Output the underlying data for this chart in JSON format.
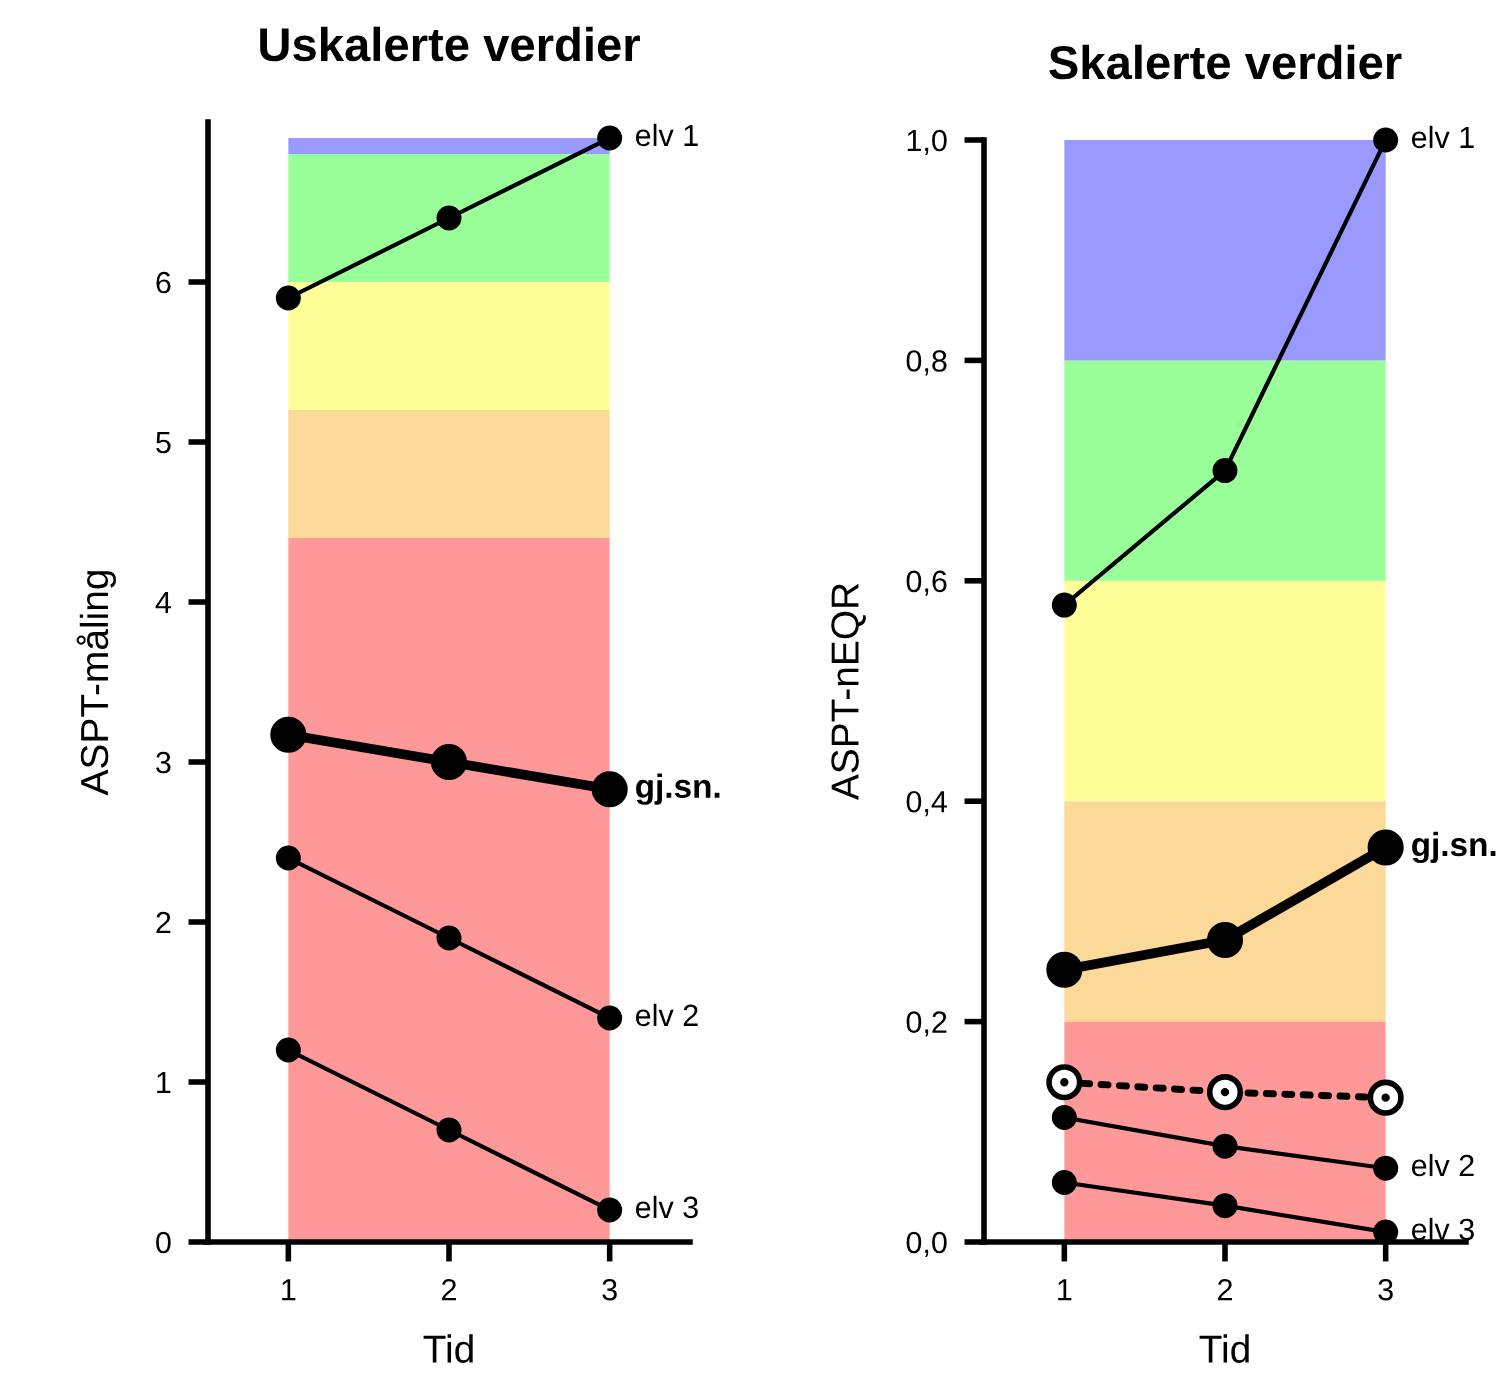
{
  "chart_data": [
    {
      "type": "line",
      "title": "Uskalerte verdier",
      "xlabel": "Tid",
      "ylabel": "ASPT-måling",
      "x": [
        1,
        2,
        3
      ],
      "xlim": [
        0.5,
        3.5
      ],
      "xticks": [
        1,
        2,
        3
      ],
      "ylim": [
        0,
        7
      ],
      "yticks": [
        0,
        1,
        2,
        3,
        4,
        5,
        6
      ],
      "marker": "circle",
      "grid": false,
      "legend": false,
      "bands": [
        {
          "axis": "y",
          "from": 0,
          "to": 4.4,
          "color": "#ff9999"
        },
        {
          "axis": "y",
          "from": 4.4,
          "to": 5.2,
          "color": "#fcd899"
        },
        {
          "axis": "y",
          "from": 5.2,
          "to": 6.0,
          "color": "#ffff99"
        },
        {
          "axis": "y",
          "from": 6.0,
          "to": 6.8,
          "color": "#99ff99"
        },
        {
          "axis": "y",
          "from": 6.8,
          "to": 6.9,
          "color": "#9999ff"
        }
      ],
      "series": [
        {
          "name": "gj.sn.",
          "color": "#000000",
          "values": [
            3.17,
            3.0,
            2.83
          ]
        },
        {
          "name": "elv 1",
          "color": "#000000",
          "values": [
            5.9,
            6.4,
            6.9
          ]
        },
        {
          "name": "elv 2",
          "color": "#000000",
          "values": [
            2.4,
            1.9,
            1.4
          ]
        },
        {
          "name": "elv 3",
          "color": "#000000",
          "values": [
            1.2,
            0.7,
            0.2
          ]
        }
      ]
    },
    {
      "type": "line",
      "title": "Skalerte verdier",
      "xlabel": "Tid",
      "ylabel": "ASPT-nEQR",
      "x": [
        1,
        2,
        3
      ],
      "xlim": [
        0.5,
        3.5
      ],
      "xticks": [
        1,
        2,
        3
      ],
      "ylim": [
        0,
        1
      ],
      "yticks": [
        {
          "value": 0,
          "label": "0,0"
        },
        {
          "value": 0.2,
          "label": "0,2"
        },
        {
          "value": 0.4,
          "label": "0,4"
        },
        {
          "value": 0.6,
          "label": "0,6"
        },
        {
          "value": 0.8,
          "label": "0,8"
        },
        {
          "value": 1.0,
          "label": "1,0"
        }
      ],
      "marker": "circle",
      "grid": false,
      "legend": false,
      "bands": [
        {
          "axis": "y",
          "from": 0,
          "to": 0.2,
          "color": "#ff9999"
        },
        {
          "axis": "y",
          "from": 0.2,
          "to": 0.4,
          "color": "#fcd899"
        },
        {
          "axis": "y",
          "from": 0.4,
          "to": 0.6,
          "color": "#ffff99"
        },
        {
          "axis": "y",
          "from": 0.6,
          "to": 0.8,
          "color": "#99ff99"
        },
        {
          "axis": "y",
          "from": 0.8,
          "to": 1.0,
          "color": "#9999ff"
        }
      ],
      "series": [
        {
          "name": "gj.sn.",
          "color": "#000000",
          "values": [
            0.247,
            0.274,
            0.358
          ]
        },
        {
          "name": "elv 1",
          "color": "#000000",
          "values": [
            0.578,
            0.7,
            1.0
          ]
        },
        {
          "color": "#000000",
          "values": [
            0.145,
            0.136,
            0.131
          ],
          "line_style": "dotted"
        },
        {
          "name": "elv 2",
          "color": "#000000",
          "values": [
            0.113,
            0.087,
            0.067
          ]
        },
        {
          "name": "elv 3",
          "color": "#000000",
          "values": [
            0.054,
            0.033,
            0.009
          ]
        }
      ]
    }
  ]
}
